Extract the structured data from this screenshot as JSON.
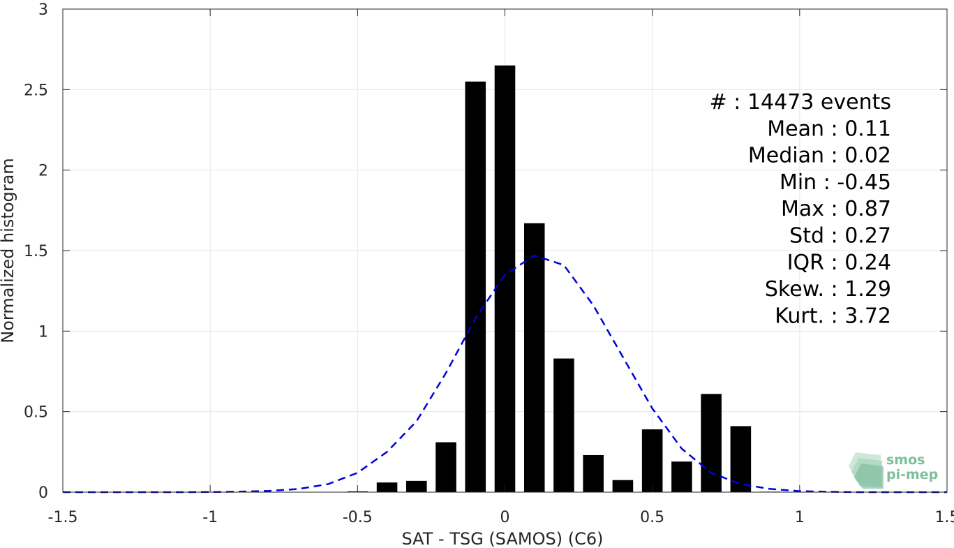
{
  "chart_data": {
    "type": "bar",
    "xlabel": "SAT - TSG (SAMOS) (C6)",
    "ylabel": "Normalized histogram",
    "xlim": [
      -1.5,
      1.5
    ],
    "ylim": [
      0,
      3
    ],
    "xticks": [
      -1.5,
      -1,
      -0.5,
      0,
      0.5,
      1,
      1.5
    ],
    "xtick_labels": [
      "-1.5",
      "-1",
      "-0.5",
      "0",
      "0.5",
      "1",
      "1.5"
    ],
    "yticks": [
      0,
      0.5,
      1,
      1.5,
      2,
      2.5,
      3
    ],
    "ytick_labels": [
      "0",
      "0.5",
      "1",
      "1.5",
      "2",
      "2.5",
      "3"
    ],
    "grid": true,
    "bar_width": 0.07,
    "bars": {
      "color": "#000000",
      "x": [
        -0.5,
        -0.4,
        -0.3,
        -0.2,
        -0.1,
        0.0,
        0.1,
        0.2,
        0.3,
        0.4,
        0.5,
        0.6,
        0.7,
        0.8,
        0.9
      ],
      "values": [
        0.005,
        0.06,
        0.07,
        0.31,
        2.55,
        2.65,
        1.67,
        0.83,
        0.23,
        0.075,
        0.39,
        0.19,
        0.61,
        0.41,
        0.003
      ]
    },
    "fit_curve": {
      "style": "dashed",
      "color": "#0000dd",
      "x": [
        -1.5,
        -1.4,
        -1.3,
        -1.2,
        -1.1,
        -1.0,
        -0.9,
        -0.8,
        -0.7,
        -0.6,
        -0.5,
        -0.4,
        -0.3,
        -0.2,
        -0.1,
        0.0,
        0.1,
        0.2,
        0.3,
        0.4,
        0.5,
        0.6,
        0.7,
        0.8,
        0.9,
        1.0,
        1.1,
        1.2,
        1.3,
        1.4,
        1.5
      ],
      "y": [
        0,
        0,
        0,
        0,
        0,
        0.001,
        0.003,
        0.008,
        0.02,
        0.05,
        0.12,
        0.25,
        0.44,
        0.74,
        1.08,
        1.35,
        1.47,
        1.41,
        1.16,
        0.84,
        0.52,
        0.27,
        0.12,
        0.05,
        0.02,
        0.006,
        0.002,
        0,
        0,
        0,
        0
      ]
    },
    "annotations": [
      "#  : 14473 events",
      "Mean : 0.11",
      "Median : 0.02",
      "Min : -0.45",
      "Max : 0.87",
      "Std : 0.27",
      "IQR : 0.24",
      "Skew. : 1.29",
      "Kurt. : 3.72"
    ]
  },
  "logo": {
    "line1": "smos",
    "line2": "pi-mep",
    "color": "#5aa882"
  }
}
